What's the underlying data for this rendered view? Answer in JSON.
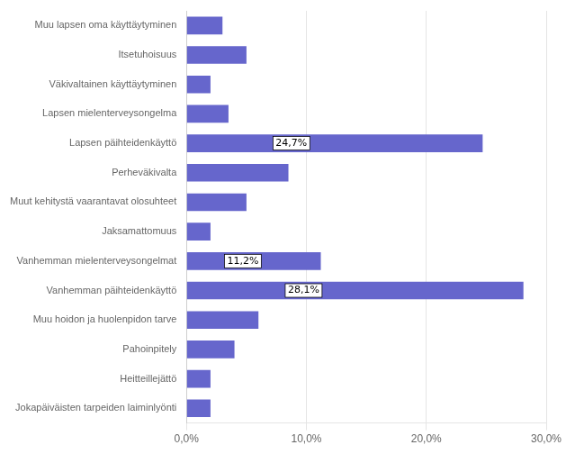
{
  "chart_data": {
    "type": "bar",
    "orientation": "horizontal",
    "categories": [
      "Jokapäiväisten tarpeiden laiminlyönti",
      "Heitteillejättö",
      "Pahoinpitely",
      "Muu hoidon ja huolenpidon tarve",
      "Vanhemman päihteidenkäyttö",
      "Vanhemman mielenterveysongelmat",
      "Jaksamattomuus",
      "Muut kehitystä vaarantavat olosuhteet",
      "Perheväkivalta",
      "Lapsen päihteidenkäyttö",
      "Lapsen mielenterveysongelma",
      "Väkivaltainen käyttäytyminen",
      "Itsetuhoisuus",
      "Muu lapsen oma käyttäytyminen"
    ],
    "values": [
      2.0,
      2.0,
      4.0,
      6.0,
      28.1,
      11.2,
      2.0,
      5.0,
      8.5,
      24.7,
      3.5,
      2.0,
      5.0,
      3.0
    ],
    "value_labels": [
      null,
      null,
      null,
      null,
      "28,1%",
      "11,2%",
      null,
      null,
      null,
      "24,7%",
      null,
      null,
      null,
      null
    ],
    "color": "#6666cc",
    "xlim": [
      0,
      30
    ],
    "xticks": [
      {
        "value": 0,
        "label": "0,0%"
      },
      {
        "value": 10,
        "label": "10,0%"
      },
      {
        "value": 20,
        "label": "20,0%"
      },
      {
        "value": 30,
        "label": "30,0%"
      }
    ],
    "grid": true
  }
}
